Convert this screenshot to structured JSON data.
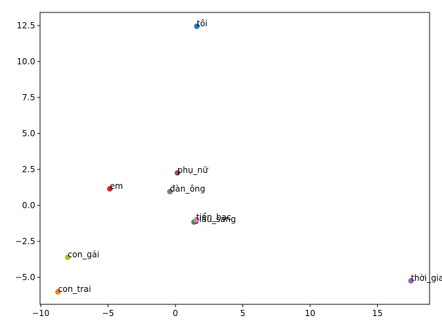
{
  "chart_data": {
    "type": "scatter",
    "series": [
      {
        "name": "tôi",
        "color": "#1f77b4",
        "x": [
          1.59
        ],
        "values": [
          12.45
        ]
      },
      {
        "name": "con_trai",
        "color": "#ff7f0e",
        "x": [
          -8.72
        ],
        "values": [
          -6.01
        ]
      },
      {
        "name": "giàu_sang",
        "color": "#2ca02c",
        "x": [
          1.38
        ],
        "values": [
          -1.15
        ]
      },
      {
        "name": "em",
        "color": "#d62728",
        "x": [
          -4.87
        ],
        "values": [
          1.15
        ]
      },
      {
        "name": "thời_gian",
        "color": "#9467bd",
        "x": [
          17.49
        ],
        "values": [
          -5.24
        ]
      },
      {
        "name": "phụ_nữ",
        "color": "#8c564b",
        "x": [
          0.15
        ],
        "values": [
          2.26
        ]
      },
      {
        "name": "tiền_bạc",
        "color": "#e377c2",
        "x": [
          1.54
        ],
        "values": [
          -1.01
        ]
      },
      {
        "name": "đàn_ông",
        "color": "#7f7f7f",
        "x": [
          -0.41
        ],
        "values": [
          0.96
        ]
      },
      {
        "name": "con_gái",
        "color": "#bcbd22",
        "x": [
          -8.0
        ],
        "values": [
          -3.61
        ]
      }
    ],
    "xlim": [
      -10.05,
      18.87
    ],
    "xticks": [
      {
        "value": -10,
        "label": "−10"
      },
      {
        "value": -5,
        "label": "−5"
      },
      0,
      5,
      10,
      15
    ],
    "ylim": [
      -6.875,
      13.41
    ],
    "yticks": [
      {
        "value": -5,
        "label": "−5.0"
      },
      {
        "value": -2.5,
        "label": "−2.5"
      },
      {
        "value": 0,
        "label": "0.0"
      },
      2.5,
      {
        "value": 5,
        "label": "5.0"
      },
      7.5,
      {
        "value": 10,
        "label": "10.0"
      },
      12.5
    ]
  }
}
